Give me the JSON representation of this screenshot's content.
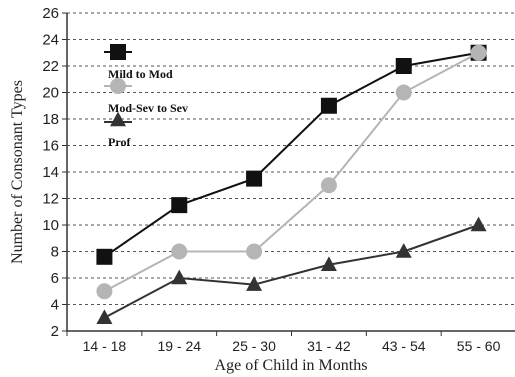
{
  "chart_data": {
    "type": "line",
    "xlabel": "Age of Child in Months",
    "ylabel": "Number of Consonant Types",
    "categories": [
      "14 - 18",
      "19 - 24",
      "25 - 30",
      "31 - 42",
      "43 - 54",
      "55 - 60"
    ],
    "ylim": [
      2,
      26
    ],
    "yticks": [
      2,
      4,
      6,
      8,
      10,
      12,
      14,
      16,
      18,
      20,
      22,
      24,
      26
    ],
    "grid": true,
    "legend_position": "top-left",
    "series": [
      {
        "name": "Mild to Mod",
        "marker": "square",
        "color": "#111111",
        "values": [
          7.6,
          11.5,
          13.5,
          19.0,
          22.0,
          23.0
        ]
      },
      {
        "name": "Mod-Sev to Sev",
        "marker": "circle",
        "color": "#b5b5b5",
        "values": [
          5.0,
          8.0,
          8.0,
          13.0,
          20.0,
          23.0
        ]
      },
      {
        "name": "Prof",
        "marker": "triangle",
        "color": "#333333",
        "values": [
          3.0,
          6.0,
          5.5,
          7.0,
          8.0,
          10.0
        ]
      }
    ]
  }
}
